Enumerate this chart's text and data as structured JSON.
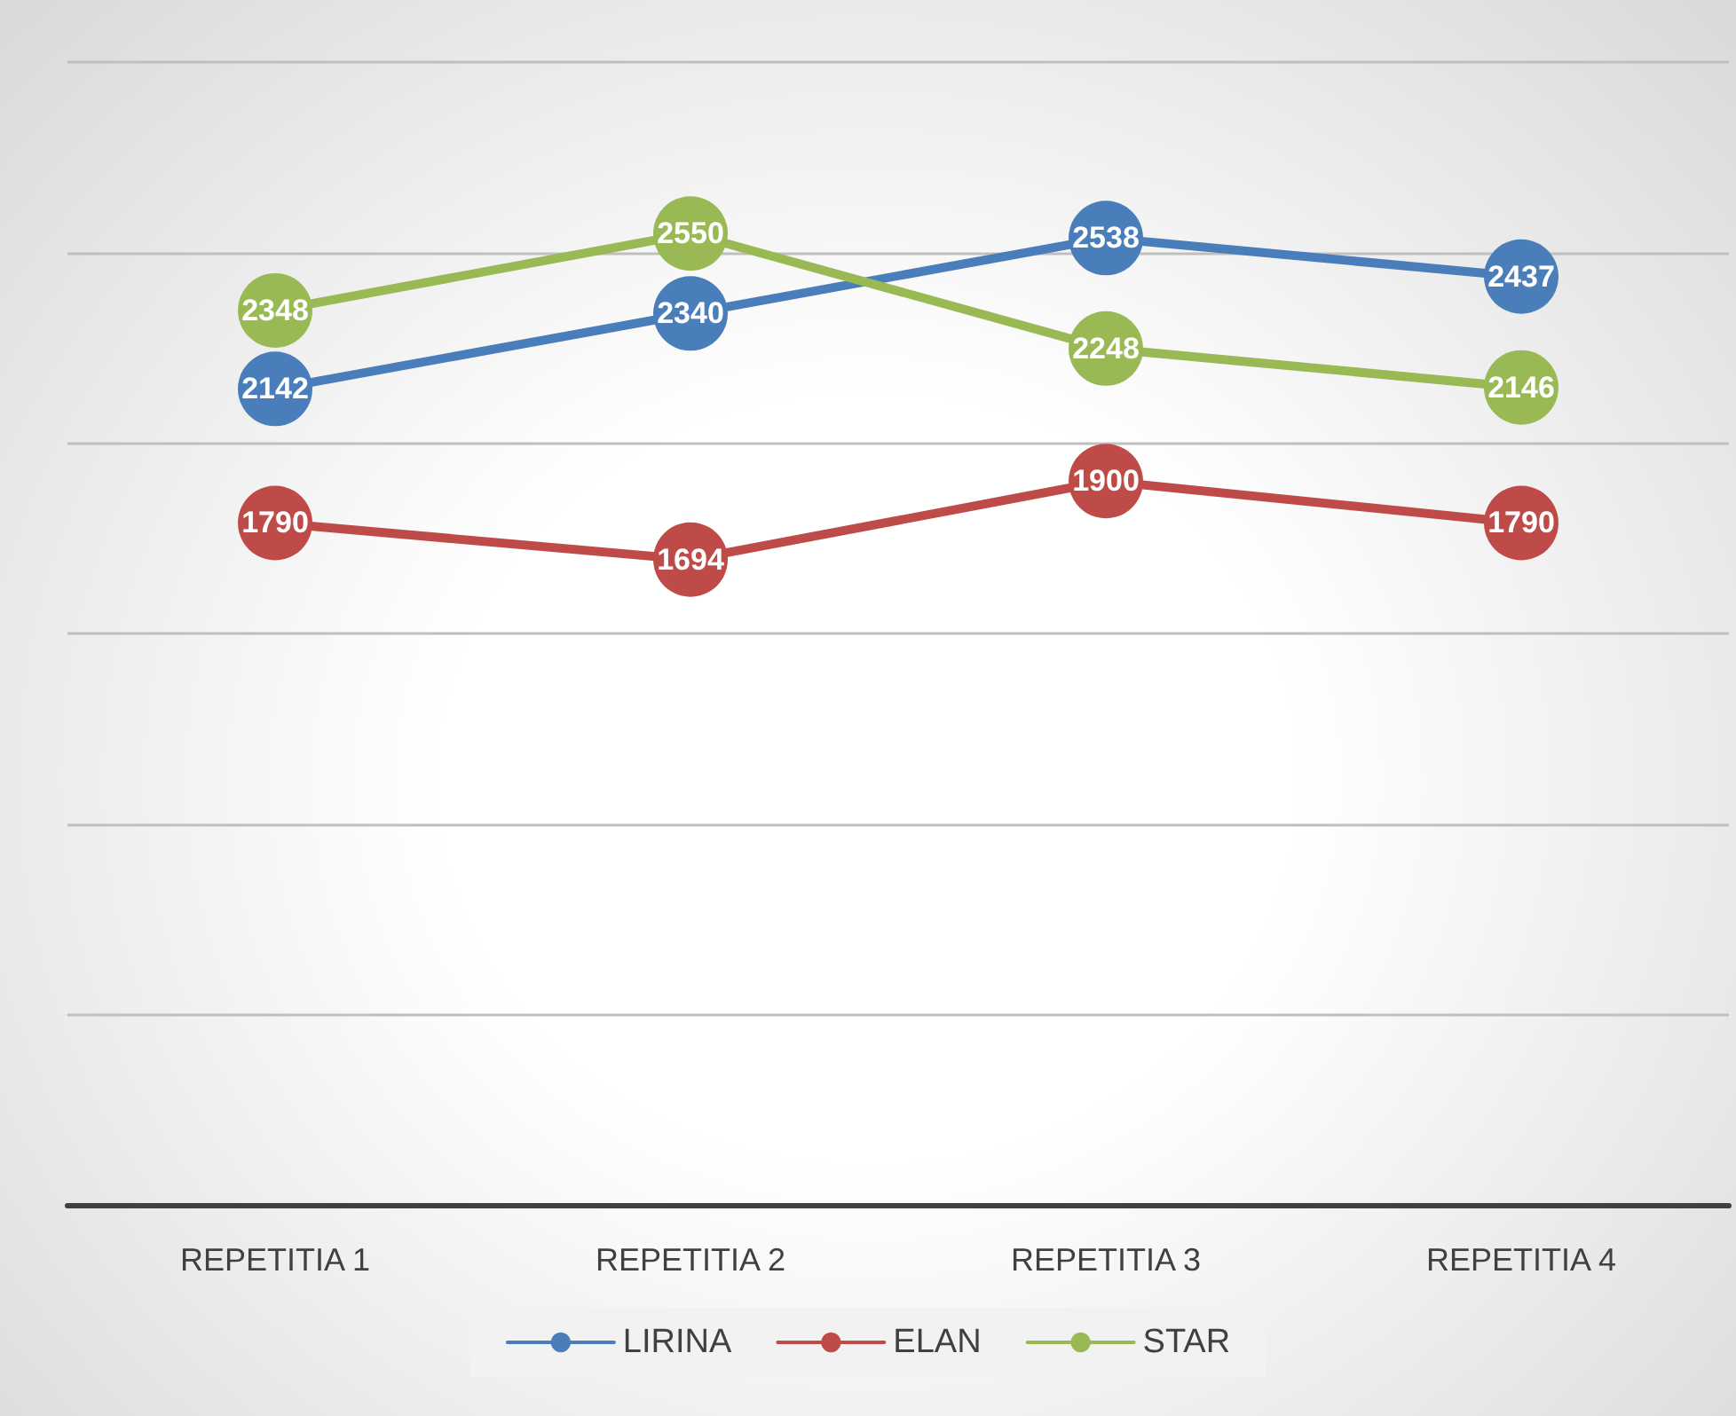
{
  "chart_data": {
    "type": "line",
    "categories": [
      "REPETITIA 1",
      "REPETITIA 2",
      "REPETITIA 3",
      "REPETITIA 4"
    ],
    "series": [
      {
        "name": "LIRINA",
        "color": "#4a7ebb",
        "values": [
          2142,
          2340,
          2538,
          2437
        ]
      },
      {
        "name": "ELAN",
        "color": "#be4b48",
        "values": [
          1790,
          1694,
          1900,
          1790
        ]
      },
      {
        "name": "STAR",
        "color": "#98b954",
        "values": [
          2348,
          2550,
          2248,
          2146
        ]
      }
    ],
    "ylim": [
      0,
      3000
    ],
    "yticks": [
      {
        "value": 0,
        "label": null
      },
      {
        "value": 500,
        "label": null
      },
      {
        "value": 1000,
        "label": null
      },
      {
        "value": 1500,
        "label": null
      },
      {
        "value": 2000,
        "label": null
      },
      {
        "value": 2500,
        "label": null
      },
      {
        "value": 3000,
        "label": null
      }
    ],
    "tick_labels": "x",
    "grid": "y",
    "legend": "bottom",
    "marker": "circle",
    "line_style": "solid",
    "data_labels": true
  }
}
